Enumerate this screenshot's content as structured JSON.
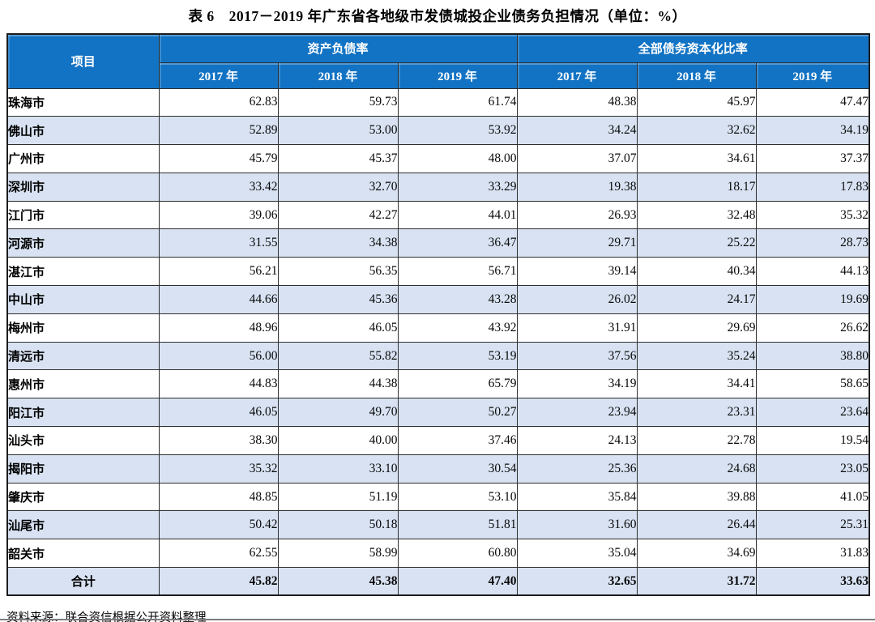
{
  "title": "表 6　2017－2019 年广东省各地级市发债城投企业债务负担情况（单位：%）",
  "table": {
    "item_header": "项目",
    "group_headers": [
      "资产负债率",
      "全部债务资本化比率"
    ],
    "year_headers": [
      "2017 年",
      "2018 年",
      "2019 年",
      "2017 年",
      "2018 年",
      "2019 年"
    ],
    "rows": [
      {
        "name": "珠海市",
        "values": [
          "62.83",
          "59.73",
          "61.74",
          "48.38",
          "45.97",
          "47.47"
        ]
      },
      {
        "name": "佛山市",
        "values": [
          "52.89",
          "53.00",
          "53.92",
          "34.24",
          "32.62",
          "34.19"
        ]
      },
      {
        "name": "广州市",
        "values": [
          "45.79",
          "45.37",
          "48.00",
          "37.07",
          "34.61",
          "37.37"
        ]
      },
      {
        "name": "深圳市",
        "values": [
          "33.42",
          "32.70",
          "33.29",
          "19.38",
          "18.17",
          "17.83"
        ]
      },
      {
        "name": "江门市",
        "values": [
          "39.06",
          "42.27",
          "44.01",
          "26.93",
          "32.48",
          "35.32"
        ]
      },
      {
        "name": "河源市",
        "values": [
          "31.55",
          "34.38",
          "36.47",
          "29.71",
          "25.22",
          "28.73"
        ]
      },
      {
        "name": "湛江市",
        "values": [
          "56.21",
          "56.35",
          "56.71",
          "39.14",
          "40.34",
          "44.13"
        ]
      },
      {
        "name": "中山市",
        "values": [
          "44.66",
          "45.36",
          "43.28",
          "26.02",
          "24.17",
          "19.69"
        ]
      },
      {
        "name": "梅州市",
        "values": [
          "48.96",
          "46.05",
          "43.92",
          "31.91",
          "29.69",
          "26.62"
        ]
      },
      {
        "name": "清远市",
        "values": [
          "56.00",
          "55.82",
          "53.19",
          "37.56",
          "35.24",
          "38.80"
        ]
      },
      {
        "name": "惠州市",
        "values": [
          "44.83",
          "44.38",
          "65.79",
          "34.19",
          "34.41",
          "58.65"
        ]
      },
      {
        "name": "阳江市",
        "values": [
          "46.05",
          "49.70",
          "50.27",
          "23.94",
          "23.31",
          "23.64"
        ]
      },
      {
        "name": "汕头市",
        "values": [
          "38.30",
          "40.00",
          "37.46",
          "24.13",
          "22.78",
          "19.54"
        ]
      },
      {
        "name": "揭阳市",
        "values": [
          "35.32",
          "33.10",
          "30.54",
          "25.36",
          "24.68",
          "23.05"
        ]
      },
      {
        "name": "肇庆市",
        "values": [
          "48.85",
          "51.19",
          "53.10",
          "35.84",
          "39.88",
          "41.05"
        ]
      },
      {
        "name": "汕尾市",
        "values": [
          "50.42",
          "50.18",
          "51.81",
          "31.60",
          "26.44",
          "25.31"
        ]
      },
      {
        "name": "韶关市",
        "values": [
          "62.55",
          "58.99",
          "60.80",
          "35.04",
          "34.69",
          "31.83"
        ]
      }
    ],
    "total_row": {
      "name": "合计",
      "values": [
        "45.82",
        "45.38",
        "47.40",
        "32.65",
        "31.72",
        "33.63"
      ]
    }
  },
  "footer": {
    "source": "资料来源：联合资信根据公开资料整理"
  },
  "colors": {
    "header_bg": "#1273C4",
    "row_alt_bg": "#D8E2F2"
  }
}
